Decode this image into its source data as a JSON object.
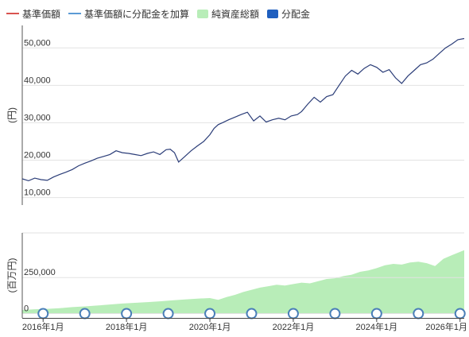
{
  "legend": [
    {
      "label": "基準価額",
      "kind": "line",
      "color": "#d9534f"
    },
    {
      "label": "基準価額に分配金を加算",
      "kind": "line",
      "color": "#5b9bd5"
    },
    {
      "label": "純資産総額",
      "kind": "box",
      "color": "#b8edb8"
    },
    {
      "label": "分配金",
      "kind": "box",
      "color": "#1f5fbf"
    }
  ],
  "chart_data": [
    {
      "type": "line",
      "ylabel": "(円)",
      "ylim": [
        8000,
        56000
      ],
      "yticks": [
        10000,
        20000,
        30000,
        40000,
        50000
      ],
      "ytick_labels": [
        "10,000",
        "20,000",
        "30,000",
        "40,000",
        "50,000"
      ],
      "line_color": "#2b3d78",
      "x": [
        2015.5,
        2015.65,
        2015.8,
        2015.95,
        2016.1,
        2016.25,
        2016.4,
        2016.55,
        2016.7,
        2016.85,
        2017.0,
        2017.15,
        2017.3,
        2017.45,
        2017.6,
        2017.75,
        2017.9,
        2018.05,
        2018.2,
        2018.35,
        2018.5,
        2018.65,
        2018.8,
        2018.95,
        2019.05,
        2019.15,
        2019.25,
        2019.4,
        2019.55,
        2019.7,
        2019.85,
        2020.0,
        2020.1,
        2020.2,
        2020.3,
        2020.45,
        2020.6,
        2020.75,
        2020.9,
        2021.05,
        2021.2,
        2021.35,
        2021.5,
        2021.65,
        2021.8,
        2021.95,
        2022.1,
        2022.2,
        2022.35,
        2022.5,
        2022.65,
        2022.8,
        2022.95,
        2023.1,
        2023.25,
        2023.4,
        2023.55,
        2023.7,
        2023.85,
        2024.0,
        2024.15,
        2024.3,
        2024.45,
        2024.6,
        2024.75,
        2024.9,
        2025.05,
        2025.2,
        2025.35,
        2025.5,
        2025.65,
        2025.8,
        2025.95,
        2026.1
      ],
      "values": [
        15000,
        14500,
        15200,
        14800,
        14600,
        15500,
        16200,
        16800,
        17500,
        18500,
        19200,
        19800,
        20500,
        21000,
        21500,
        22500,
        22000,
        21800,
        21500,
        21200,
        21800,
        22200,
        21500,
        22800,
        22900,
        22000,
        19500,
        21000,
        22500,
        23800,
        25000,
        26800,
        28500,
        29500,
        30000,
        30800,
        31500,
        32200,
        32800,
        30500,
        31800,
        30200,
        30800,
        31200,
        30800,
        31800,
        32200,
        33000,
        35000,
        36800,
        35500,
        37000,
        37500,
        40000,
        42500,
        44000,
        43000,
        44500,
        45500,
        44800,
        43500,
        44200,
        42000,
        40500,
        42500,
        44000,
        45500,
        46000,
        47000,
        48500,
        50000,
        51000,
        52200,
        52500
      ],
      "color_hint": "navy"
    },
    {
      "type": "area",
      "ylabel": "(百万円)",
      "ylim": [
        -30000,
        560000
      ],
      "yticks": [
        0,
        250000
      ],
      "ytick_labels": [
        "0",
        "250,000"
      ],
      "fill_color": "#b8edb8",
      "x": [
        2015.5,
        2015.8,
        2016.1,
        2016.4,
        2016.7,
        2017.0,
        2017.3,
        2017.6,
        2017.9,
        2018.2,
        2018.5,
        2018.8,
        2019.1,
        2019.4,
        2019.7,
        2020.0,
        2020.2,
        2020.4,
        2020.6,
        2020.8,
        2021.0,
        2021.2,
        2021.4,
        2021.6,
        2021.8,
        2022.0,
        2022.2,
        2022.4,
        2022.6,
        2022.8,
        2023.0,
        2023.2,
        2023.4,
        2023.6,
        2023.8,
        2024.0,
        2024.2,
        2024.4,
        2024.6,
        2024.8,
        2025.0,
        2025.2,
        2025.4,
        2025.6,
        2025.8,
        2026.1
      ],
      "values": [
        25000,
        30000,
        33000,
        38000,
        45000,
        50000,
        56000,
        63000,
        70000,
        75000,
        80000,
        85000,
        92000,
        98000,
        104000,
        108000,
        95000,
        115000,
        130000,
        150000,
        165000,
        180000,
        190000,
        200000,
        195000,
        205000,
        215000,
        210000,
        225000,
        240000,
        245000,
        260000,
        270000,
        290000,
        300000,
        315000,
        335000,
        345000,
        340000,
        355000,
        360000,
        350000,
        330000,
        380000,
        405000,
        440000
      ],
      "dividends": {
        "x": [
          2016.0,
          2017.0,
          2018.0,
          2019.0,
          2020.0,
          2021.0,
          2022.0,
          2023.0,
          2024.0,
          2025.0,
          2026.0
        ],
        "values": [
          0,
          0,
          0,
          0,
          0,
          0,
          0,
          0,
          0,
          0,
          0
        ]
      }
    }
  ],
  "xaxis": {
    "xlim": [
      2015.5,
      2026.1
    ],
    "tick_positions": [
      2016.0,
      2018.0,
      2020.0,
      2022.0,
      2024.0,
      2026.0
    ],
    "tick_labels": [
      "2016年1月",
      "2018年1月",
      "2020年1月",
      "2022年1月",
      "2024年1月",
      "2026年1月"
    ]
  }
}
